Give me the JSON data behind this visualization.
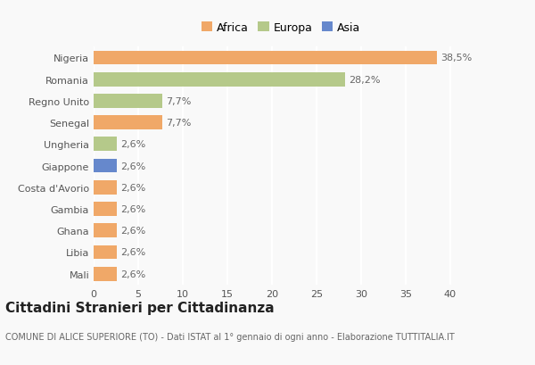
{
  "categories": [
    "Nigeria",
    "Romania",
    "Regno Unito",
    "Senegal",
    "Ungheria",
    "Giappone",
    "Costa d'Avorio",
    "Gambia",
    "Ghana",
    "Libia",
    "Mali"
  ],
  "values": [
    38.5,
    28.2,
    7.7,
    7.7,
    2.6,
    2.6,
    2.6,
    2.6,
    2.6,
    2.6,
    2.6
  ],
  "labels": [
    "38,5%",
    "28,2%",
    "7,7%",
    "7,7%",
    "2,6%",
    "2,6%",
    "2,6%",
    "2,6%",
    "2,6%",
    "2,6%",
    "2,6%"
  ],
  "bar_colors": [
    "#f0a868",
    "#b5c98a",
    "#b5c98a",
    "#f0a868",
    "#b5c98a",
    "#6688cc",
    "#f0a868",
    "#f0a868",
    "#f0a868",
    "#f0a868",
    "#f0a868"
  ],
  "legend_labels": [
    "Africa",
    "Europa",
    "Asia"
  ],
  "legend_colors": [
    "#f0a868",
    "#b5c98a",
    "#6688cc"
  ],
  "xlim": [
    0,
    42
  ],
  "xticks": [
    0,
    5,
    10,
    15,
    20,
    25,
    30,
    35,
    40
  ],
  "title": "Cittadini Stranieri per Cittadinanza",
  "subtitle": "COMUNE DI ALICE SUPERIORE (TO) - Dati ISTAT al 1° gennaio di ogni anno - Elaborazione TUTTITALIA.IT",
  "background_color": "#f9f9f9",
  "grid_color": "#ffffff",
  "title_fontsize": 11,
  "subtitle_fontsize": 7,
  "label_fontsize": 8,
  "tick_fontsize": 8,
  "legend_fontsize": 9
}
